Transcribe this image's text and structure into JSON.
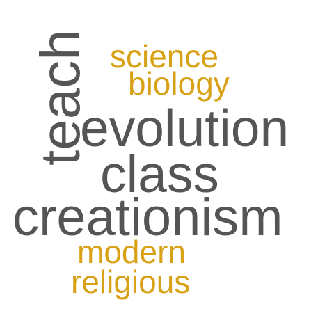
{
  "word_cloud": {
    "colors": {
      "primary": "#555555",
      "accent": "#d8a116"
    },
    "words": {
      "science": "science",
      "biology": "biology",
      "teach": "teach",
      "evolution": "evolution",
      "class": "class",
      "creationism": "creationism",
      "modern": "modern",
      "religious": "religious"
    }
  }
}
